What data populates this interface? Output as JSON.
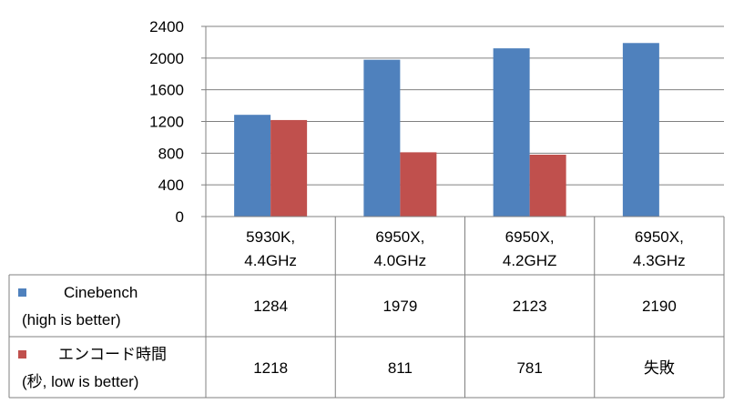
{
  "chart_data": {
    "type": "bar",
    "categories": [
      [
        "5930K,",
        "4.4GHz"
      ],
      [
        "6950X,",
        "4.0GHz"
      ],
      [
        "6950X,",
        "4.2GHZ"
      ],
      [
        "6950X,",
        "4.3GHz"
      ]
    ],
    "ylim": [
      0,
      2400
    ],
    "yticks": [
      "0",
      "400",
      "800",
      "1200",
      "1600",
      "2000",
      "2400"
    ],
    "grid": true,
    "legend_placement": "data-table",
    "series": [
      {
        "name_lines": [
          "Cinebench",
          "(high is better)"
        ],
        "color": "#4f81bd",
        "values": [
          1284,
          1979,
          2123,
          2190
        ],
        "table_values": [
          "1284",
          "1979",
          "2123",
          "2190"
        ]
      },
      {
        "name_lines": [
          "エンコード時間",
          "(秒, low is better)"
        ],
        "color": "#c0504d",
        "values": [
          1218,
          811,
          781,
          null
        ],
        "table_values": [
          "1218",
          "811",
          "781",
          "失敗"
        ]
      }
    ]
  }
}
